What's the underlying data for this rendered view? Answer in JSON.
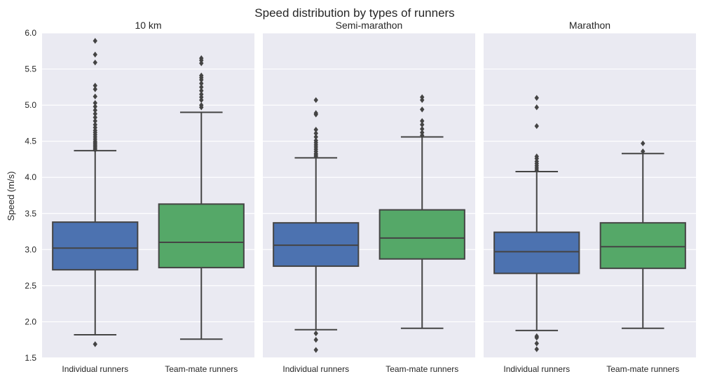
{
  "chart_data": {
    "type": "box",
    "title": "Speed distribution by types of runners",
    "ylabel": "Speed (m/s)",
    "ylim": [
      1.5,
      6.0
    ],
    "yticks": [
      "1.5",
      "2.0",
      "2.5",
      "3.0",
      "3.5",
      "4.0",
      "4.5",
      "5.0",
      "5.5",
      "6.0"
    ],
    "grid": true,
    "categories": [
      "Individual runners",
      "Team-mate runners"
    ],
    "colors": {
      "Individual runners": "#4c72b0",
      "Team-mate runners": "#55a868",
      "panel_background": "#eaeaf2",
      "grid": "#ffffff",
      "line": "#444444"
    },
    "panels": [
      {
        "title": "10 km",
        "boxes": [
          {
            "category": "Individual runners",
            "whisker_low": 1.82,
            "q1": 2.72,
            "median": 3.02,
            "q3": 3.38,
            "whisker_high": 4.37,
            "outliers": [
              1.69,
              4.38,
              4.4,
              4.42,
              4.44,
              4.46,
              4.48,
              4.5,
              4.53,
              4.56,
              4.59,
              4.62,
              4.65,
              4.69,
              4.73,
              4.78,
              4.83,
              4.88,
              4.93,
              4.98,
              5.03,
              5.12,
              5.22,
              5.27,
              5.59,
              5.7,
              5.89
            ]
          },
          {
            "category": "Team-mate runners",
            "whisker_low": 1.76,
            "q1": 2.75,
            "median": 3.1,
            "q3": 3.63,
            "whisker_high": 4.9,
            "outliers": [
              4.97,
              5.0,
              5.07,
              5.11,
              5.15,
              5.2,
              5.25,
              5.3,
              5.35,
              5.38,
              5.41,
              5.58,
              5.62,
              5.65
            ]
          }
        ]
      },
      {
        "title": "Semi-marathon",
        "boxes": [
          {
            "category": "Individual runners",
            "whisker_low": 1.89,
            "q1": 2.77,
            "median": 3.06,
            "q3": 3.37,
            "whisker_high": 4.27,
            "outliers": [
              1.61,
              1.75,
              1.84,
              4.29,
              4.31,
              4.33,
              4.36,
              4.39,
              4.42,
              4.45,
              4.48,
              4.51,
              4.56,
              4.61,
              4.66,
              4.87,
              4.89,
              5.07
            ]
          },
          {
            "category": "Team-mate runners",
            "whisker_low": 1.91,
            "q1": 2.87,
            "median": 3.16,
            "q3": 3.55,
            "whisker_high": 4.56,
            "outliers": [
              4.58,
              4.62,
              4.67,
              4.73,
              4.78,
              4.94,
              5.07,
              5.11
            ]
          }
        ]
      },
      {
        "title": "Marathon",
        "boxes": [
          {
            "category": "Individual runners",
            "whisker_low": 1.88,
            "q1": 2.67,
            "median": 2.97,
            "q3": 3.24,
            "whisker_high": 4.08,
            "outliers": [
              1.62,
              1.7,
              1.78,
              1.8,
              4.1,
              4.13,
              4.16,
              4.19,
              4.22,
              4.26,
              4.29,
              4.71,
              4.97,
              5.1
            ]
          },
          {
            "category": "Team-mate runners",
            "whisker_low": 1.91,
            "q1": 2.74,
            "median": 3.04,
            "q3": 3.37,
            "whisker_high": 4.33,
            "outliers": [
              4.36,
              4.47
            ]
          }
        ]
      }
    ]
  }
}
